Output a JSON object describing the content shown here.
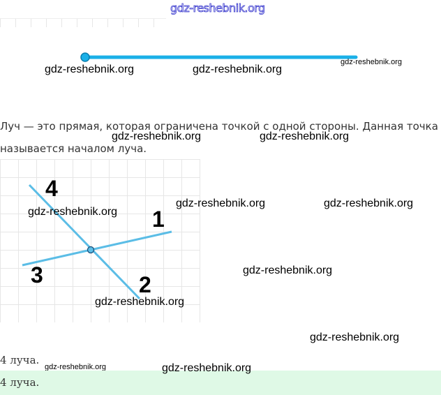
{
  "watermark": "gdz-reshebnik.org",
  "paragraph": {
    "line1": "Луч — это прямая, которая ограничена точкой с одной стороны. Данная точка",
    "line2": "называется началом луча."
  },
  "figure": {
    "labels": [
      "1",
      "2",
      "3",
      "4"
    ],
    "ray_color": "#1ab0e8",
    "line_color": "#5bbde6"
  },
  "answer_plain": "4 луча.",
  "answer_highlight": "4 луча.",
  "answer_bg": "#dff9e6"
}
